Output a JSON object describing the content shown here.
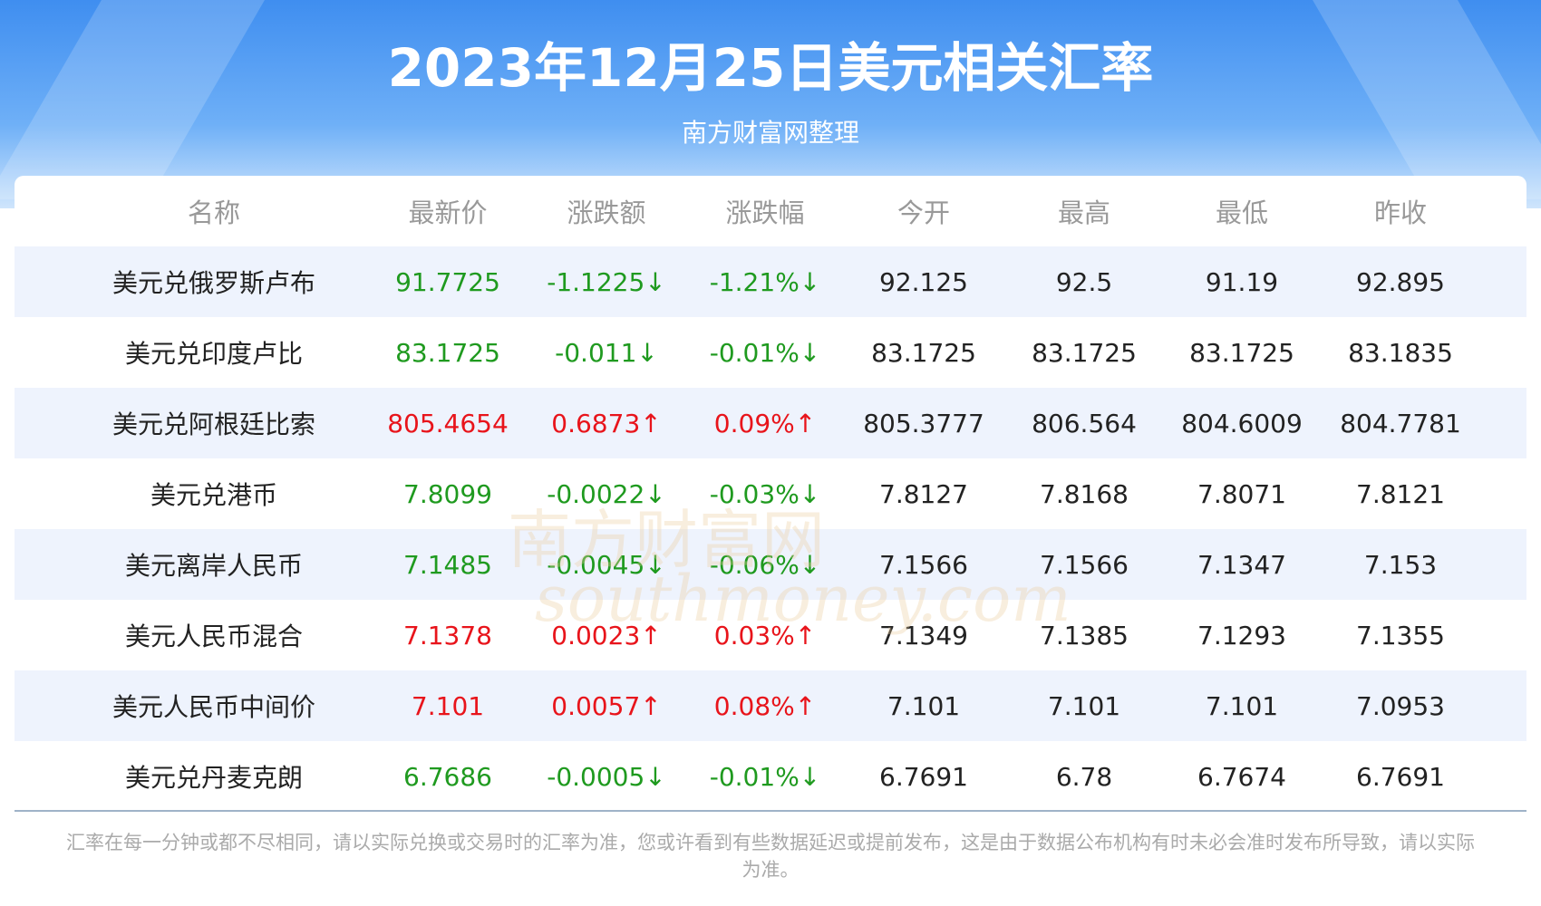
{
  "header": {
    "title": "2023年12月25日美元相关汇率",
    "subtitle": "南方财富网整理"
  },
  "watermark": {
    "brand": "南方财富网",
    "site": "southmoney.com"
  },
  "table": {
    "columns": [
      "名称",
      "最新价",
      "涨跌额",
      "涨跌幅",
      "今开",
      "最高",
      "最低",
      "昨收"
    ],
    "rows": [
      {
        "color": "#1f9a1f",
        "cells": [
          "美元兑俄罗斯卢布",
          "91.7725",
          "-1.1225↓",
          "-1.21%↓",
          "92.125",
          "92.5",
          "91.19",
          "92.895"
        ]
      },
      {
        "color": "#1f9a1f",
        "cells": [
          "美元兑印度卢比",
          "83.1725",
          "-0.011↓",
          "-0.01%↓",
          "83.1725",
          "83.1725",
          "83.1725",
          "83.1835"
        ]
      },
      {
        "color": "#e8141b",
        "cells": [
          "美元兑阿根廷比索",
          "805.4654",
          "0.6873↑",
          "0.09%↑",
          "805.3777",
          "806.564",
          "804.6009",
          "804.7781"
        ]
      },
      {
        "color": "#1f9a1f",
        "cells": [
          "美元兑港币",
          "7.8099",
          "-0.0022↓",
          "-0.03%↓",
          "7.8127",
          "7.8168",
          "7.8071",
          "7.8121"
        ]
      },
      {
        "color": "#1f9a1f",
        "cells": [
          "美元离岸人民币",
          "7.1485",
          "-0.0045↓",
          "-0.06%↓",
          "7.1566",
          "7.1566",
          "7.1347",
          "7.153"
        ]
      },
      {
        "color": "#e8141b",
        "cells": [
          "美元人民币混合",
          "7.1378",
          "0.0023↑",
          "0.03%↑",
          "7.1349",
          "7.1385",
          "7.1293",
          "7.1355"
        ]
      },
      {
        "color": "#e8141b",
        "cells": [
          "美元人民币中间价",
          "7.101",
          "0.0057↑",
          "0.08%↑",
          "7.101",
          "7.101",
          "7.101",
          "7.0953"
        ]
      },
      {
        "color": "#1f9a1f",
        "cells": [
          "美元兑丹麦克朗",
          "6.7686",
          "-0.0005↓",
          "-0.01%↓",
          "6.7691",
          "6.78",
          "6.7674",
          "6.7691"
        ]
      }
    ]
  },
  "footer": {
    "note": "汇率在每一分钟或都不尽相同，请以实际兑换或交易时的汇率为准，您或许看到有些数据延迟或提前发布，这是由于数据公布机构有时未必会准时发布所导致，请以实际为准。"
  }
}
